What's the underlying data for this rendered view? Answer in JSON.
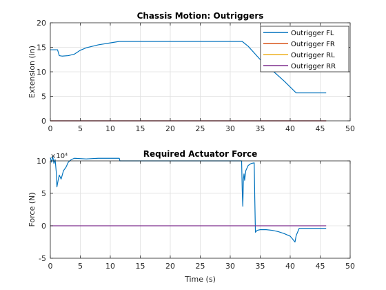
{
  "colors": {
    "axis": "#262626",
    "grid": "#dfdfdf",
    "series": [
      "#0072BD",
      "#D95319",
      "#EDB120",
      "#7E2F8E"
    ]
  },
  "chart_data": [
    {
      "type": "line",
      "title": "Chassis Motion: Outriggers",
      "xlabel": "",
      "ylabel": "Extension (in)",
      "xlim": [
        0,
        50
      ],
      "ylim": [
        0,
        20
      ],
      "xticks": [
        0,
        5,
        10,
        15,
        20,
        25,
        30,
        35,
        40,
        45,
        50
      ],
      "yticks": [
        0,
        5,
        10,
        15,
        20
      ],
      "exponent_label": "",
      "grid": true,
      "legend": {
        "position": "top-right",
        "entries": [
          "Outrigger FL",
          "Outrigger FR",
          "Outrigger RL",
          "Outrigger RR"
        ]
      },
      "series": [
        {
          "name": "Outrigger FL",
          "x": [
            0,
            1.2,
            1.5,
            2,
            3,
            4,
            5,
            6,
            8,
            10,
            11.5,
            15,
            20,
            25,
            30,
            32,
            33,
            35,
            37,
            39,
            41,
            42,
            46
          ],
          "y": [
            14.5,
            14.5,
            13.3,
            13.2,
            13.3,
            13.6,
            14.4,
            14.9,
            15.5,
            15.9,
            16.2,
            16.2,
            16.2,
            16.2,
            16.2,
            16.2,
            15.2,
            12.5,
            10.3,
            8.1,
            5.7,
            5.7,
            5.7
          ]
        },
        {
          "name": "Outrigger FR",
          "x": [
            0,
            46
          ],
          "y": [
            0,
            0
          ]
        },
        {
          "name": "Outrigger RL",
          "x": [
            0,
            46
          ],
          "y": [
            0,
            0
          ]
        },
        {
          "name": "Outrigger RR",
          "x": [
            0,
            46
          ],
          "y": [
            0,
            0
          ]
        }
      ]
    },
    {
      "type": "line",
      "title": "Required Actuator Force",
      "xlabel": "Time (s)",
      "ylabel": "Force (N)",
      "xlim": [
        0,
        50
      ],
      "ylim": [
        -5,
        10
      ],
      "xticks": [
        0,
        5,
        10,
        15,
        20,
        25,
        30,
        35,
        40,
        45,
        50
      ],
      "yticks": [
        -5,
        0,
        5,
        10
      ],
      "exponent_label": "×10⁴",
      "grid": true,
      "series": [
        {
          "name": "",
          "x": [
            0,
            0.2,
            0.4,
            0.6,
            0.8,
            1.0,
            1.1,
            1.3,
            1.5,
            1.8,
            2.2,
            2.6,
            3.0,
            3.5,
            4.0,
            6,
            8,
            10,
            11.5,
            11.6,
            15,
            20,
            25,
            30,
            31.9,
            32.0,
            32.1,
            32.2,
            32.3,
            32.4,
            32.6,
            33,
            33.5,
            34.0,
            34.1,
            34.2,
            34.5,
            35,
            36,
            37,
            38,
            39,
            40,
            40.8,
            41.0,
            41.5,
            46
          ],
          "y": [
            10.5,
            9.8,
            10.7,
            9.6,
            10.2,
            8.2,
            6.0,
            7.0,
            7.8,
            7.2,
            8.5,
            9.0,
            9.8,
            10.2,
            10.4,
            10.3,
            10.4,
            10.4,
            10.4,
            10.0,
            10.0,
            10.0,
            10.0,
            10.0,
            10.0,
            5.5,
            3.0,
            7.2,
            8.0,
            7.0,
            8.5,
            9.3,
            9.6,
            9.7,
            4.0,
            -1.0,
            -0.7,
            -0.6,
            -0.6,
            -0.7,
            -0.9,
            -1.2,
            -1.6,
            -2.5,
            -1.5,
            -0.4,
            -0.4
          ]
        },
        {
          "name": "",
          "x": [
            0,
            46
          ],
          "y": [
            0,
            0
          ]
        }
      ]
    }
  ]
}
